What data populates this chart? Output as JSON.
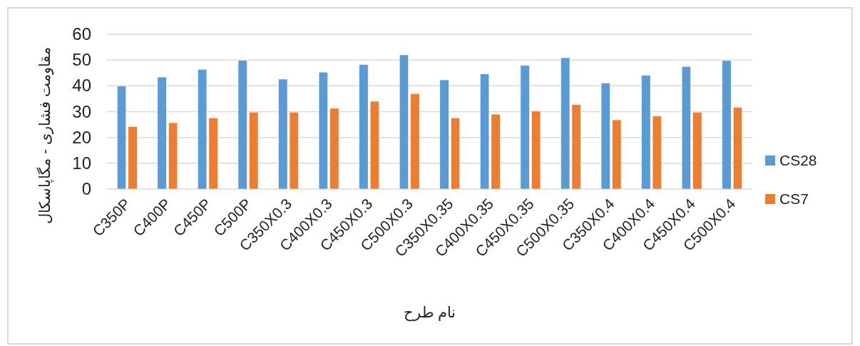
{
  "chart_data": {
    "type": "bar",
    "xlabel": "نام طرح",
    "ylabel": "مقاومت فشاری - مگاپاسکال",
    "categories": [
      "C350P",
      "C400P",
      "C450P",
      "C500P",
      "C350X0.3",
      "C400X0.3",
      "C450X0.3",
      "C500X0.3",
      "C350X0.35",
      "C400X0.35",
      "C450X0.35",
      "C500X0.35",
      "C350X0.4",
      "C400X0.4",
      "C450X0.4",
      "C500X0.4"
    ],
    "series": [
      {
        "name": "CS28",
        "color": "#5b9bd5",
        "values": [
          40,
          43.4,
          46.4,
          49.9,
          42.6,
          45.3,
          48.3,
          52,
          42.3,
          44.6,
          47.9,
          50.9,
          41.1,
          44.1,
          47.5,
          49.8
        ]
      },
      {
        "name": "CS7",
        "color": "#ed7d31",
        "values": [
          24.2,
          25.7,
          27.6,
          29.8,
          29.8,
          31.3,
          34,
          37,
          27.6,
          29,
          30.2,
          32.8,
          26.8,
          28.3,
          29.8,
          31.7
        ]
      }
    ],
    "ylim": [
      0,
      60
    ],
    "yticks": [
      0,
      10,
      20,
      30,
      40,
      50,
      60
    ],
    "grid": "y",
    "legend": "right"
  }
}
